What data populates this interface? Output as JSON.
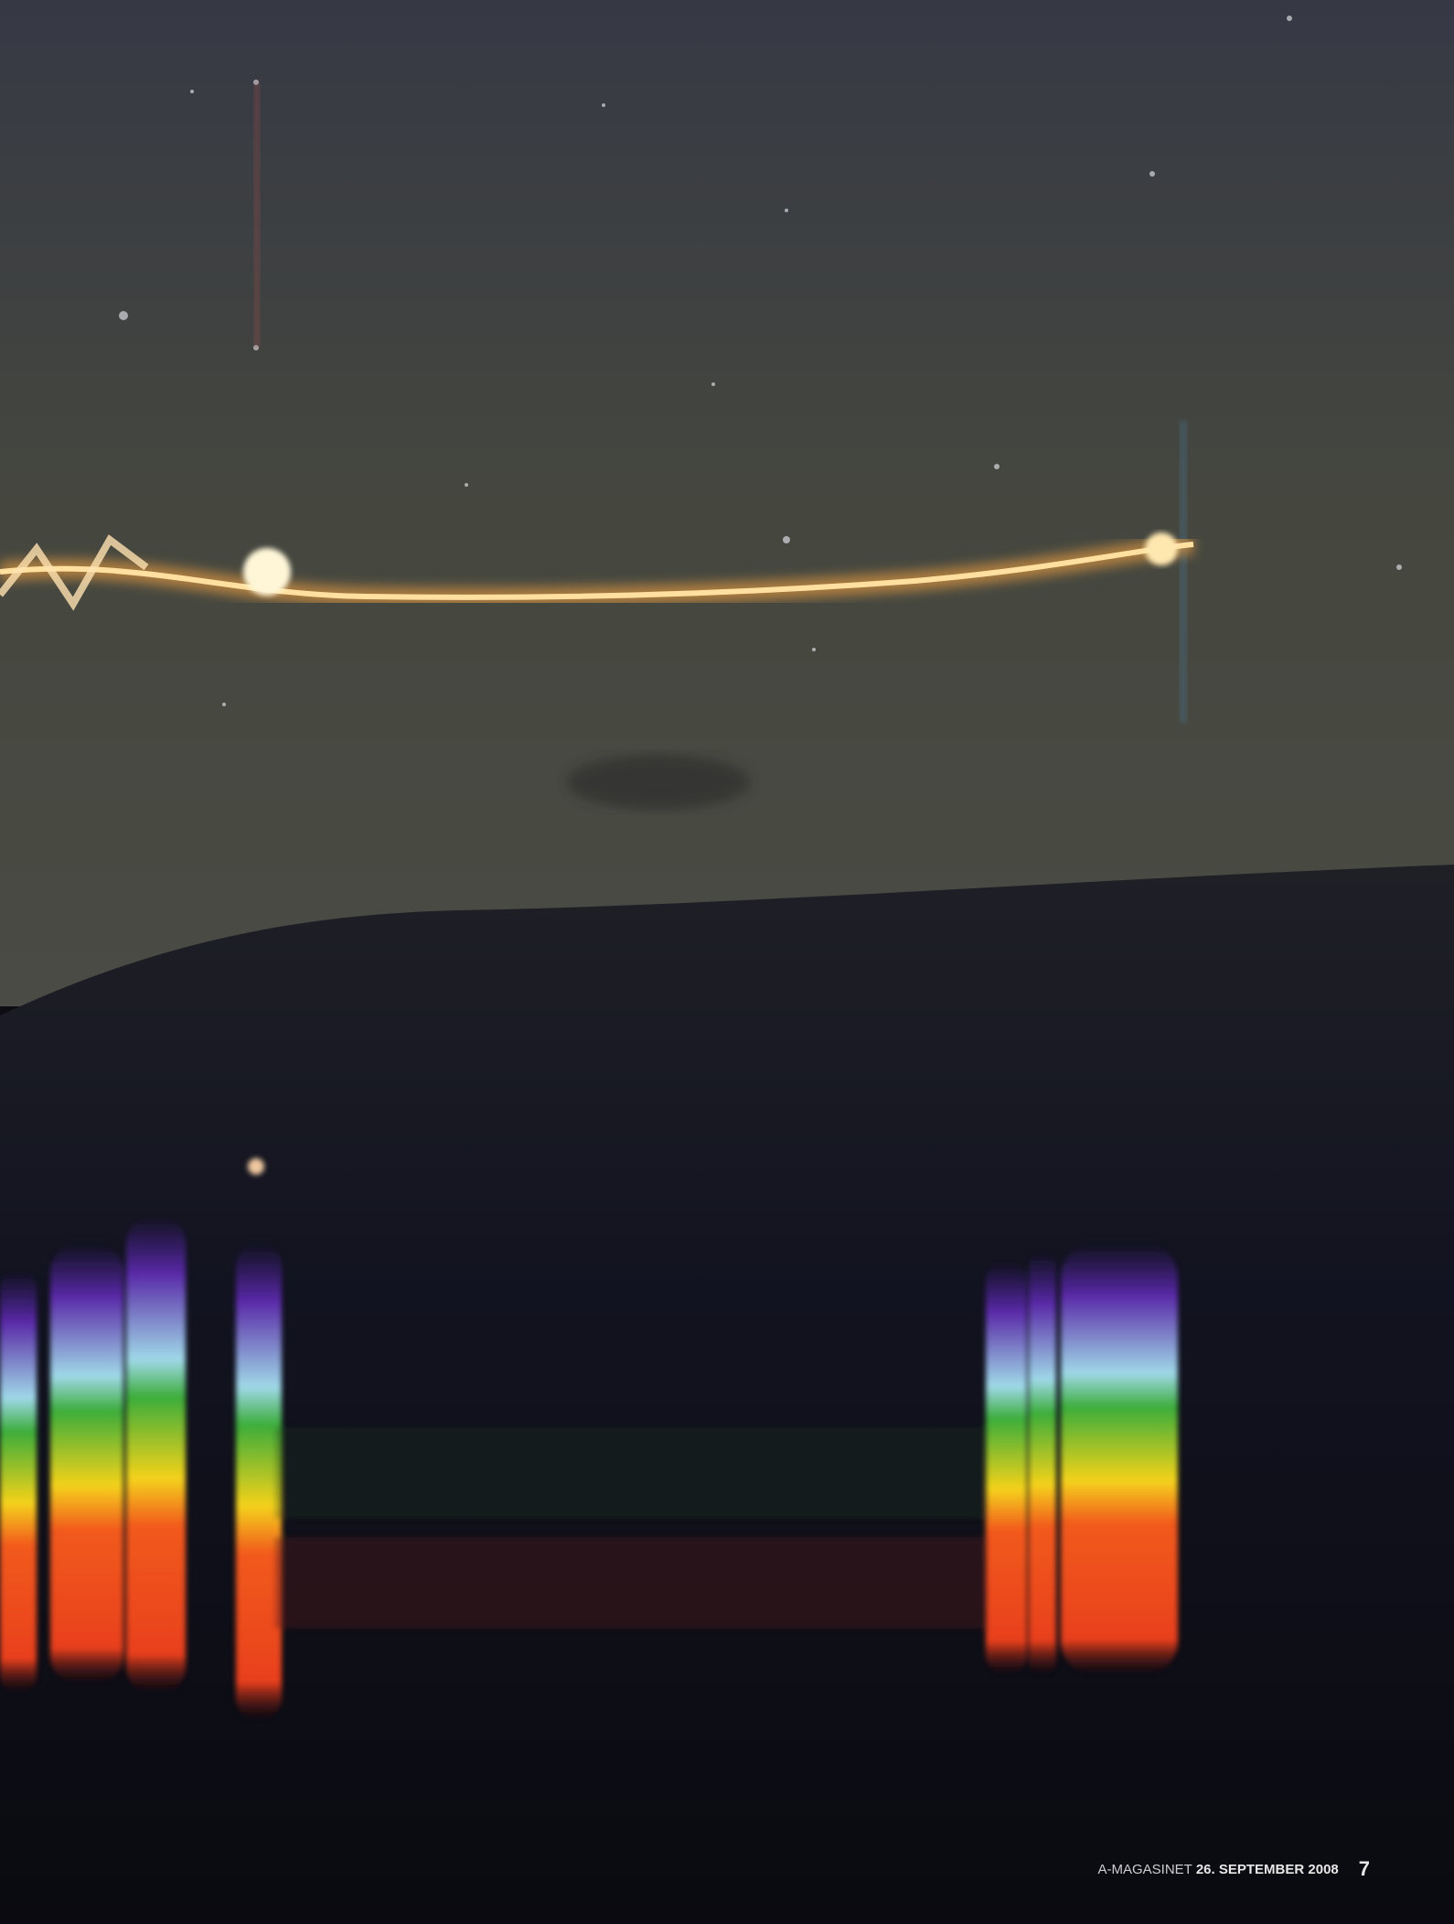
{
  "footer": {
    "publication": "A-MAGASINET",
    "date": "26. SEPTEMBER 2008",
    "page_number": "7"
  }
}
